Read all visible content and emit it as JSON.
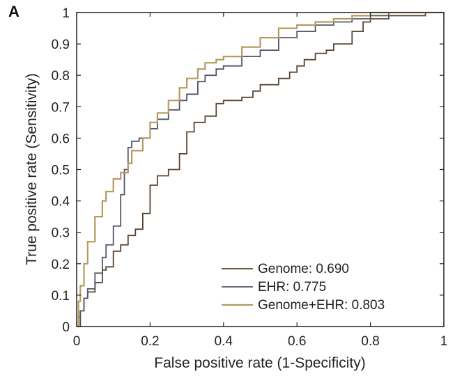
{
  "panel_label": "A",
  "chart_data": {
    "type": "line",
    "title": "",
    "xlabel": "False positive rate (1-Specificity)",
    "ylabel": "True positive rate (Sensitivity)",
    "xlim": [
      0,
      1
    ],
    "ylim": [
      0,
      1
    ],
    "x_ticks": [
      "0",
      "0.2",
      "0.4",
      "0.6",
      "0.8",
      "1"
    ],
    "y_ticks": [
      "0",
      "0.1",
      "0.2",
      "0.3",
      "0.4",
      "0.5",
      "0.6",
      "0.7",
      "0.8",
      "0.9",
      "1"
    ],
    "grid": false,
    "legend_position": "bottom-right",
    "series": [
      {
        "name": "Genome: 0.690",
        "color": "#5a4530",
        "x": [
          0,
          0.01,
          0.02,
          0.03,
          0.05,
          0.07,
          0.08,
          0.1,
          0.12,
          0.14,
          0.16,
          0.18,
          0.2,
          0.22,
          0.25,
          0.28,
          0.3,
          0.32,
          0.35,
          0.38,
          0.4,
          0.45,
          0.48,
          0.5,
          0.55,
          0.58,
          0.6,
          0.62,
          0.65,
          0.68,
          0.7,
          0.75,
          0.78,
          0.8,
          0.85,
          0.9,
          0.95,
          1.0
        ],
        "y": [
          0,
          0.05,
          0.09,
          0.11,
          0.14,
          0.18,
          0.19,
          0.24,
          0.26,
          0.29,
          0.31,
          0.36,
          0.45,
          0.48,
          0.5,
          0.55,
          0.62,
          0.65,
          0.67,
          0.71,
          0.72,
          0.73,
          0.75,
          0.77,
          0.79,
          0.81,
          0.83,
          0.85,
          0.87,
          0.88,
          0.9,
          0.94,
          0.97,
          0.98,
          0.99,
          0.99,
          1.0,
          1.0
        ]
      },
      {
        "name": "EHR: 0.775",
        "color": "#55556a",
        "x": [
          0,
          0.005,
          0.01,
          0.02,
          0.03,
          0.05,
          0.07,
          0.08,
          0.1,
          0.12,
          0.13,
          0.14,
          0.15,
          0.17,
          0.2,
          0.22,
          0.25,
          0.28,
          0.3,
          0.33,
          0.35,
          0.38,
          0.4,
          0.45,
          0.5,
          0.55,
          0.6,
          0.65,
          0.7,
          0.75,
          0.8,
          0.85,
          0.9,
          1.0
        ],
        "y": [
          0,
          0.03,
          0.05,
          0.09,
          0.12,
          0.17,
          0.22,
          0.26,
          0.32,
          0.42,
          0.5,
          0.57,
          0.59,
          0.6,
          0.63,
          0.66,
          0.69,
          0.72,
          0.74,
          0.78,
          0.8,
          0.82,
          0.83,
          0.86,
          0.88,
          0.92,
          0.94,
          0.96,
          0.97,
          0.98,
          0.99,
          1.0,
          1.0,
          1.0
        ]
      },
      {
        "name": "Genome+EHR: 0.803",
        "color": "#b59a62",
        "x": [
          0,
          0.005,
          0.01,
          0.02,
          0.03,
          0.05,
          0.07,
          0.08,
          0.1,
          0.12,
          0.14,
          0.15,
          0.18,
          0.2,
          0.22,
          0.25,
          0.28,
          0.3,
          0.33,
          0.35,
          0.38,
          0.4,
          0.45,
          0.5,
          0.55,
          0.6,
          0.65,
          0.7,
          0.75,
          0.8,
          0.9,
          1.0
        ],
        "y": [
          0,
          0.08,
          0.13,
          0.2,
          0.27,
          0.35,
          0.4,
          0.43,
          0.47,
          0.49,
          0.52,
          0.56,
          0.6,
          0.65,
          0.68,
          0.72,
          0.76,
          0.79,
          0.82,
          0.84,
          0.85,
          0.86,
          0.89,
          0.92,
          0.95,
          0.96,
          0.97,
          0.98,
          0.99,
          1.0,
          1.0,
          1.0
        ]
      }
    ]
  }
}
